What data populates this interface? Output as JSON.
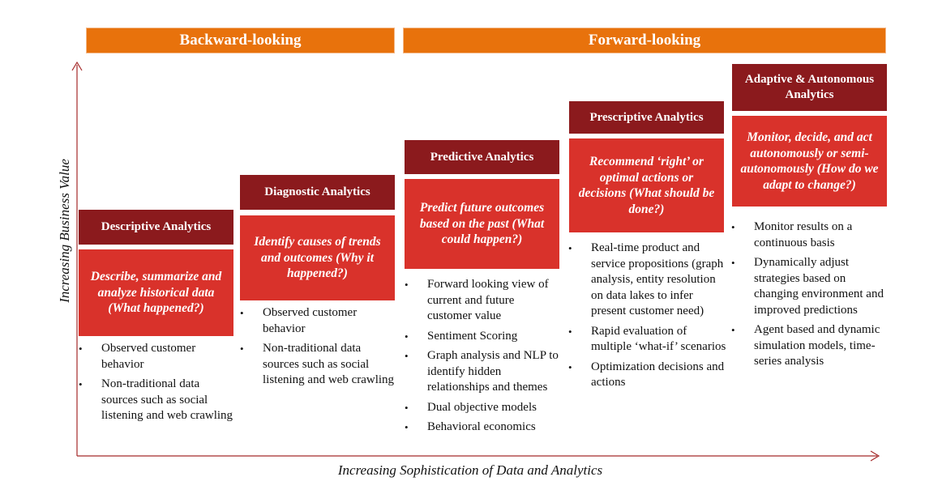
{
  "bands": {
    "backward": "Backward-looking",
    "forward": "Forward-looking"
  },
  "axes": {
    "y_label": "Increasing Business Value",
    "x_label": "Increasing Sophistication of Data and Analytics"
  },
  "stages": [
    {
      "title": "Descriptive Analytics",
      "description": "Describe, summarize and analyze historical data (What happened?)",
      "bullets": [
        "Observed customer behavior",
        "Non-traditional data sources such as social listening and web crawling"
      ]
    },
    {
      "title": "Diagnostic Analytics",
      "description": "Identify causes of trends and outcomes (Why it happened?)",
      "bullets": [
        "Observed customer behavior",
        "Non-traditional data sources such as social listening and web crawling"
      ]
    },
    {
      "title": "Predictive Analytics",
      "description": "Predict future outcomes based on the past (What could happen?)",
      "bullets": [
        "Forward looking view of current and future customer value",
        "Sentiment Scoring",
        "Graph analysis and NLP to identify hidden relationships and themes",
        "Dual objective models",
        "Behavioral economics"
      ]
    },
    {
      "title": "Prescriptive Analytics",
      "description": "Recommend ‘right’ or optimal actions or decisions (What should be done?)",
      "bullets": [
        "Real-time product and service propositions (graph analysis, entity resolution on data lakes to infer present customer need)",
        "Rapid evaluation of multiple ‘what-if’ scenarios",
        "Optimization decisions and actions"
      ]
    },
    {
      "title": "Adaptive & Autonomous Analytics",
      "description": "Monitor, decide, and act autonomously or semi-autonomously (How do we adapt to change?)",
      "bullets": [
        "Monitor results on a continuous basis",
        "Dynamically adjust strategies based on changing environment and improved predictions",
        "Agent based and dynamic simulation models, time-series analysis"
      ]
    }
  ],
  "colors": {
    "band": "#e8720c",
    "title": "#8b1a1d",
    "description": "#d9322b",
    "axis": "#a52a2a"
  }
}
